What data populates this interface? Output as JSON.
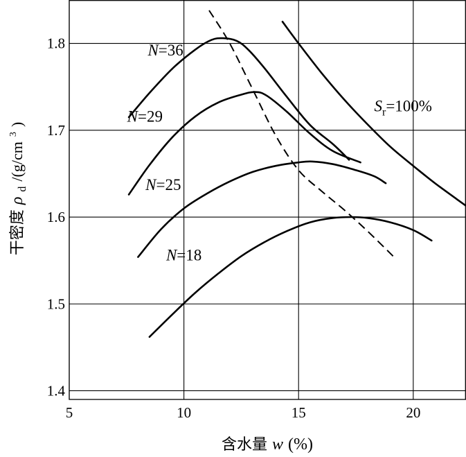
{
  "chart_data": {
    "type": "line",
    "xlabel_prefix": "含水量",
    "xlabel_var": "w",
    "xlabel_unit": "(%)",
    "ylabel_prefix": "干密度",
    "ylabel_var": "ρ",
    "ylabel_sub": "d",
    "ylabel_unit_main": "/(g/cm",
    "ylabel_unit_sup": "3",
    "ylabel_unit_close": ")",
    "xlim": [
      5,
      22.3
    ],
    "ylim": [
      1.39,
      1.85
    ],
    "x_ticks": [
      5,
      10,
      15,
      20
    ],
    "x_tick_labels": [
      "5",
      "10",
      "15",
      "20"
    ],
    "y_ticks": [
      1.4,
      1.5,
      1.6,
      1.7,
      1.8
    ],
    "y_tick_labels": [
      "1.4",
      "1.5",
      "1.6",
      "1.7",
      "1.8"
    ],
    "grid": true,
    "series": [
      {
        "name": "N=36",
        "points": [
          [
            7.6,
            1.715
          ],
          [
            8.5,
            1.743
          ],
          [
            9.5,
            1.771
          ],
          [
            10.5,
            1.793
          ],
          [
            11.2,
            1.804
          ],
          [
            11.7,
            1.806
          ],
          [
            12.3,
            1.803
          ],
          [
            12.8,
            1.793
          ],
          [
            13.5,
            1.772
          ],
          [
            14.5,
            1.738
          ],
          [
            15.5,
            1.706
          ],
          [
            16.5,
            1.684
          ],
          [
            17.2,
            1.666
          ]
        ]
      },
      {
        "name": "N=29",
        "points": [
          [
            7.6,
            1.626
          ],
          [
            8.5,
            1.66
          ],
          [
            9.5,
            1.692
          ],
          [
            10.5,
            1.716
          ],
          [
            11.5,
            1.732
          ],
          [
            12.5,
            1.741
          ],
          [
            13.1,
            1.744
          ],
          [
            13.6,
            1.74
          ],
          [
            14.5,
            1.721
          ],
          [
            15.5,
            1.696
          ],
          [
            16.5,
            1.676
          ],
          [
            17.7,
            1.663
          ]
        ]
      },
      {
        "name": "N=25",
        "points": [
          [
            8.0,
            1.554
          ],
          [
            9.0,
            1.586
          ],
          [
            10.0,
            1.61
          ],
          [
            11.0,
            1.627
          ],
          [
            12.0,
            1.641
          ],
          [
            13.0,
            1.652
          ],
          [
            14.0,
            1.659
          ],
          [
            15.0,
            1.663
          ],
          [
            15.6,
            1.664
          ],
          [
            16.5,
            1.661
          ],
          [
            17.5,
            1.654
          ],
          [
            18.3,
            1.647
          ],
          [
            18.8,
            1.639
          ]
        ]
      },
      {
        "name": "N=18",
        "points": [
          [
            8.5,
            1.462
          ],
          [
            9.5,
            1.488
          ],
          [
            10.5,
            1.513
          ],
          [
            11.5,
            1.535
          ],
          [
            12.5,
            1.555
          ],
          [
            13.5,
            1.571
          ],
          [
            14.5,
            1.584
          ],
          [
            15.5,
            1.594
          ],
          [
            16.5,
            1.599
          ],
          [
            17.3,
            1.6
          ],
          [
            18.0,
            1.599
          ],
          [
            19.0,
            1.594
          ],
          [
            20.0,
            1.585
          ],
          [
            20.8,
            1.573
          ]
        ]
      }
    ],
    "saturation_line": {
      "name": "Sr=100%",
      "label_main": "S",
      "label_sub": "r",
      "label_rest": "=100%",
      "points": [
        [
          14.3,
          1.825
        ],
        [
          15.0,
          1.8
        ],
        [
          16.0,
          1.766
        ],
        [
          17.0,
          1.735
        ],
        [
          18.0,
          1.707
        ],
        [
          19.0,
          1.681
        ],
        [
          20.0,
          1.659
        ],
        [
          21.0,
          1.638
        ],
        [
          22.3,
          1.613
        ]
      ]
    },
    "optimum_line": {
      "style": "dashed",
      "points": [
        [
          11.1,
          1.838
        ],
        [
          12.0,
          1.8
        ],
        [
          13.0,
          1.747
        ],
        [
          14.0,
          1.694
        ],
        [
          15.0,
          1.654
        ],
        [
          16.0,
          1.63
        ],
        [
          17.0,
          1.608
        ],
        [
          18.0,
          1.584
        ],
        [
          19.2,
          1.553
        ]
      ]
    },
    "curve_labels": [
      {
        "series": "N=36",
        "var": "N",
        "rest": "=36",
        "at": [
          9.2,
          1.786
        ]
      },
      {
        "series": "N=29",
        "var": "N",
        "rest": "=29",
        "at": [
          8.3,
          1.71
        ]
      },
      {
        "series": "N=25",
        "var": "N",
        "rest": "=25",
        "at": [
          9.1,
          1.631
        ]
      },
      {
        "series": "N=18",
        "var": "N",
        "rest": "=18",
        "at": [
          10.0,
          1.55
        ]
      }
    ],
    "saturation_label_at": [
      18.3,
      1.722
    ]
  }
}
